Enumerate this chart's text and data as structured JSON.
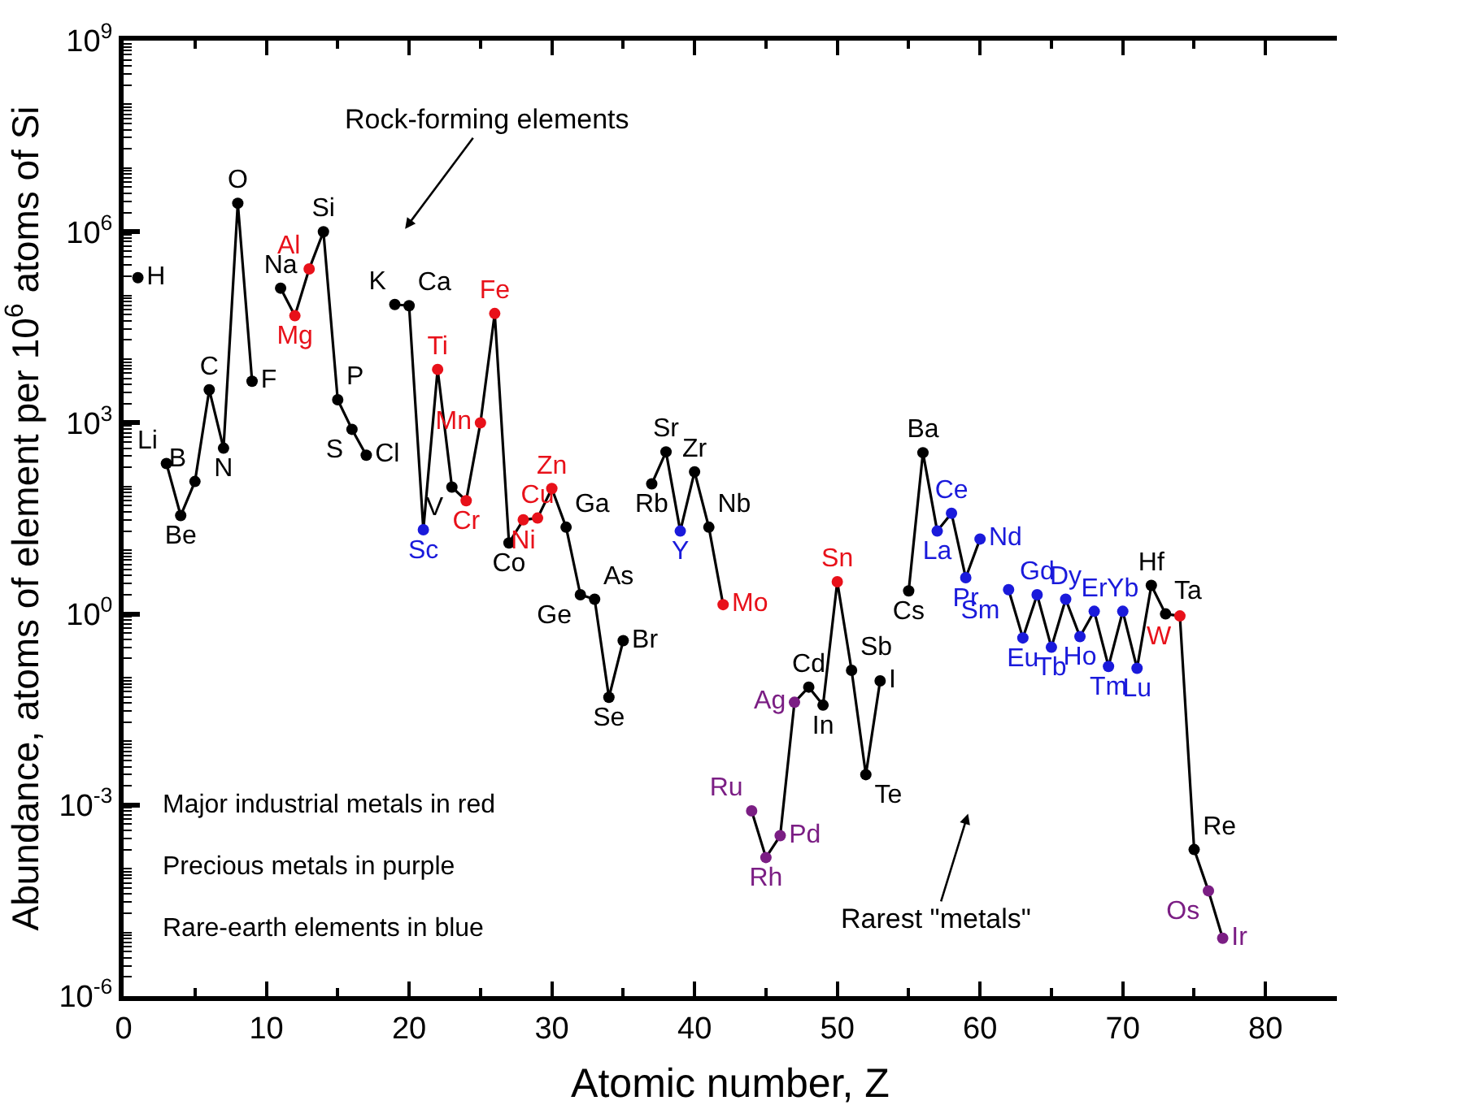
{
  "chart_data": {
    "type": "line",
    "xlabel": "Atomic number, Z",
    "ylabel": "Abundance, atoms of element per 10$^{6}$ atoms of Si",
    "xlim": [
      0,
      85
    ],
    "xticks": [
      0,
      10,
      20,
      30,
      40,
      50,
      60,
      70,
      80
    ],
    "ylim": [
      1e-06,
      1000000000.0
    ],
    "yticks": [
      {
        "value": 1e-06,
        "label": "10$^{-6}$"
      },
      {
        "value": 0.001,
        "label": "10$^{-3}$"
      },
      {
        "value": 1,
        "label": "10$^{0}$"
      },
      {
        "value": 1000.0,
        "label": "10$^{3}$"
      },
      {
        "value": 1000000.0,
        "label": "10$^{6}$"
      },
      {
        "value": 1000000000.0,
        "label": "10$^{9}$"
      }
    ],
    "log": true,
    "marker": "circle",
    "line_style": "solid",
    "x": [
      1,
      2,
      3,
      4,
      5,
      6,
      7,
      8,
      9,
      10,
      11,
      12,
      13,
      14,
      15,
      16,
      17,
      18,
      19,
      20,
      21,
      22,
      23,
      24,
      25,
      26,
      27,
      28,
      29,
      30,
      31,
      32,
      33,
      34,
      35,
      36,
      37,
      38,
      39,
      40,
      41,
      42,
      43,
      44,
      45,
      46,
      47,
      48,
      49,
      50,
      51,
      52,
      53,
      54,
      55,
      56,
      57,
      58,
      59,
      60,
      61,
      62,
      63,
      64,
      65,
      66,
      67,
      68,
      69,
      70,
      71,
      72,
      73,
      74,
      75,
      76,
      77
    ],
    "series": [
      {
        "color": "#000000",
        "values": [
          190000.0,
          null,
          230,
          35,
          120,
          3300,
          400,
          2800000.0,
          4500,
          null,
          130000.0,
          48000.0,
          260000.0,
          1000000.0,
          2300,
          790,
          310,
          null,
          72000.0,
          69000.0,
          21,
          6900,
          98,
          60,
          1000,
          52000.0,
          13,
          30,
          32,
          93,
          23,
          2.0,
          1.7,
          0.049,
          0.38,
          null,
          110,
          350,
          20,
          170,
          23,
          1.4,
          null,
          0.00081,
          0.00015,
          0.00033,
          0.041,
          0.071,
          0.037,
          3.2,
          0.13,
          0.003,
          0.089,
          null,
          2.3,
          340,
          20,
          38,
          3.7,
          15,
          null,
          2.4,
          0.42,
          2.0,
          0.3,
          1.7,
          0.44,
          1.1,
          0.15,
          1.1,
          0.14,
          2.8,
          1.0,
          0.93,
          0.0002,
          4.5e-05,
          8.1e-06
        ],
        "value_labels": [
          "H",
          null,
          "Li",
          "Be",
          "B",
          "C",
          "N",
          "O",
          "F",
          null,
          "Na",
          "Mg",
          "Al",
          "Si",
          "P",
          "S",
          "Cl",
          null,
          "K",
          "Ca",
          "Sc",
          "Ti",
          "V",
          "Cr",
          "Mn",
          "Fe",
          "Co",
          "Ni",
          "Cu",
          "Zn",
          "Ga",
          "Ge",
          "As",
          "Se",
          "Br",
          null,
          "Rb",
          "Sr",
          "Y",
          "Zr",
          "Nb",
          "Mo",
          null,
          "Ru",
          "Rh",
          "Pd",
          "Ag",
          "Cd",
          "In",
          "Sn",
          "Sb",
          "Te",
          "I",
          null,
          "Cs",
          "Ba",
          "La",
          "Ce",
          "Pr",
          "Nd",
          null,
          "Sm",
          "Eu",
          "Gd",
          "Tb",
          "Dy",
          "Ho",
          "Er",
          "Tm",
          "Yb",
          "Lu",
          "Hf",
          "Ta",
          "W",
          "Re",
          "Os",
          "Ir"
        ],
        "colors": [
          "#000000",
          "#000000",
          "#000000",
          "#000000",
          "#000000",
          "#000000",
          "#000000",
          "#000000",
          "#000000",
          "#000000",
          "#000000",
          "#e8111a",
          "#e8111a",
          "#000000",
          "#000000",
          "#000000",
          "#000000",
          "#000000",
          "#000000",
          "#000000",
          "#1a1adb",
          "#e8111a",
          "#000000",
          "#e8111a",
          "#e8111a",
          "#e8111a",
          "#000000",
          "#e8111a",
          "#e8111a",
          "#e8111a",
          "#000000",
          "#000000",
          "#000000",
          "#000000",
          "#000000",
          "#000000",
          "#000000",
          "#000000",
          "#1a1adb",
          "#000000",
          "#000000",
          "#e8111a",
          "#000000",
          "#7b1e84",
          "#7b1e84",
          "#7b1e84",
          "#7b1e84",
          "#000000",
          "#000000",
          "#e8111a",
          "#000000",
          "#000000",
          "#000000",
          "#000000",
          "#000000",
          "#000000",
          "#1a1adb",
          "#1a1adb",
          "#1a1adb",
          "#1a1adb",
          "#000000",
          "#1a1adb",
          "#1a1adb",
          "#1a1adb",
          "#1a1adb",
          "#1a1adb",
          "#1a1adb",
          "#1a1adb",
          "#1a1adb",
          "#1a1adb",
          "#1a1adb",
          "#000000",
          "#000000",
          "#e8111a",
          "#000000",
          "#7b1e84",
          "#7b1e84"
        ]
      }
    ],
    "annotations": [
      "Rock-forming elements",
      "Rarest \"metals\"",
      "Major industrial metals in red",
      "Precious metals in purple",
      "Rare-earth elements in blue"
    ]
  }
}
